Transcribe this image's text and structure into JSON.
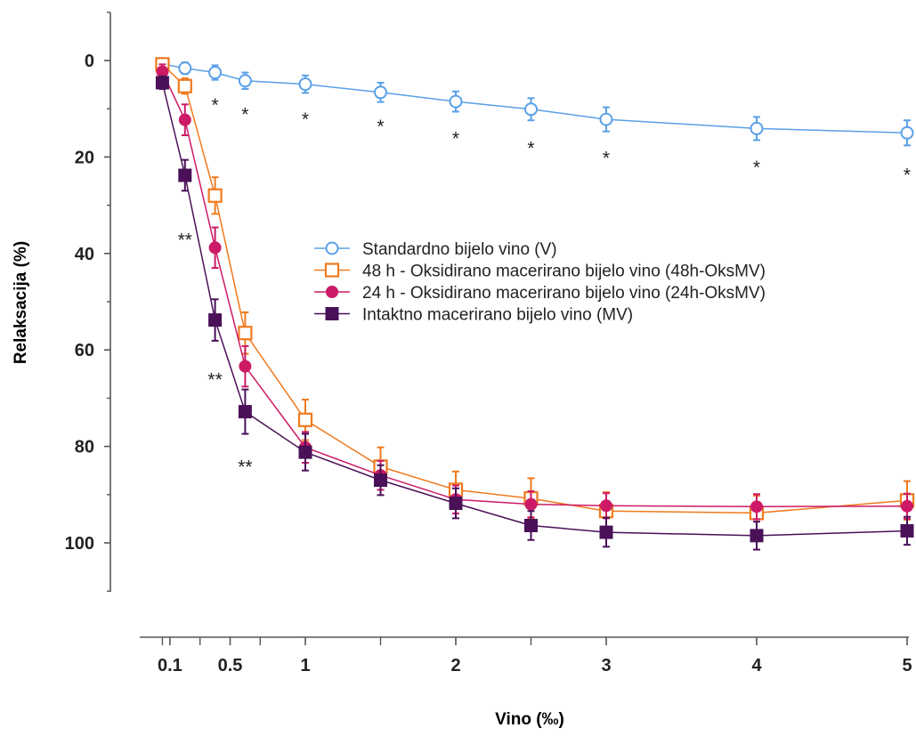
{
  "chart_data": {
    "type": "line",
    "title": "",
    "xlabel": "Vino (‰)",
    "ylabel": "Relaksacija (%)",
    "y_inverted": true,
    "ylim": [
      -10,
      110
    ],
    "yticks": [
      0,
      20,
      40,
      60,
      80,
      100
    ],
    "ytick_labels": [
      "0",
      "20",
      "40",
      "60",
      "80",
      "100"
    ],
    "xlim": [
      0,
      5
    ],
    "xticks": [
      0.1,
      0.5,
      1,
      2,
      3,
      4,
      5
    ],
    "xtick_labels": [
      "0.1",
      "0.5",
      "1",
      "2",
      "3",
      "4",
      "5"
    ],
    "x_minor_ticks": [
      0.05,
      0.3,
      0.7,
      1.5,
      2.5
    ],
    "x": [
      0,
      0.05,
      0.2,
      0.4,
      0.6,
      1,
      1.5,
      2,
      2.5,
      3,
      4,
      5
    ],
    "legend_position": "center-right",
    "series": [
      {
        "name": "Standardno bijelo vino (V)",
        "color": "#5aa0e6",
        "marker": "circle-open",
        "x": [
          0.05,
          0.2,
          0.4,
          0.6,
          1,
          1.5,
          2,
          2.5,
          3,
          4,
          5
        ],
        "values": [
          0.7,
          1.6,
          2.5,
          4.2,
          4.9,
          6.6,
          8.5,
          10.1,
          12.2,
          14.1,
          15.0
        ],
        "errors": [
          0.8,
          1.2,
          1.5,
          1.7,
          1.8,
          2.0,
          2.1,
          2.3,
          2.5,
          2.4,
          2.6
        ]
      },
      {
        "name": "48 h - Oksidirano macerirano bijelo vino (48h-OksMV)",
        "color": "#f07a1e",
        "marker": "square-open",
        "x": [
          0.05,
          0.2,
          0.4,
          0.6,
          1,
          1.5,
          2,
          2.5,
          3,
          4,
          5
        ],
        "values": [
          0.8,
          5.3,
          28.0,
          56.5,
          74.5,
          84.2,
          89.0,
          90.8,
          93.4,
          93.8,
          91.2
        ],
        "errors": [
          1.2,
          1.6,
          3.8,
          4.3,
          4.2,
          4.0,
          3.8,
          4.2,
          3.9,
          3.6,
          4.0
        ]
      },
      {
        "name": "24 h - Oksidirano macerirano bijelo vino (24h-OksMV)",
        "color": "#cc1a66",
        "marker": "circle-filled",
        "x": [
          0.05,
          0.2,
          0.4,
          0.6,
          1,
          1.5,
          2,
          2.5,
          3,
          4,
          5
        ],
        "values": [
          2.3,
          12.3,
          38.8,
          63.4,
          80.2,
          86.0,
          91.0,
          92.0,
          92.3,
          92.5,
          92.4
        ],
        "errors": [
          1.5,
          3.2,
          4.2,
          4.2,
          3.2,
          3.0,
          2.9,
          2.7,
          2.6,
          2.6,
          2.6
        ]
      },
      {
        "name": "Intaktno macerirano bijelo vino (MV)",
        "color": "#4a1058",
        "marker": "square-filled",
        "x": [
          0.05,
          0.2,
          0.4,
          0.6,
          1,
          1.5,
          2,
          2.5,
          3,
          4,
          5
        ],
        "values": [
          4.6,
          23.8,
          53.8,
          72.8,
          81.2,
          87.0,
          91.8,
          96.4,
          97.8,
          98.5,
          97.5
        ],
        "errors": [
          1.3,
          3.2,
          4.3,
          4.6,
          3.8,
          3.1,
          3.1,
          3.0,
          3.0,
          2.9,
          2.9
        ]
      }
    ],
    "annotations": [
      {
        "text": "*",
        "x": 0.4,
        "y": 9
      },
      {
        "text": "*",
        "x": 0.6,
        "y": 11
      },
      {
        "text": "*",
        "x": 1,
        "y": 12
      },
      {
        "text": "*",
        "x": 1.5,
        "y": 13.5
      },
      {
        "text": "*",
        "x": 2,
        "y": 16
      },
      {
        "text": "*",
        "x": 2.5,
        "y": 18
      },
      {
        "text": "*",
        "x": 3,
        "y": 20
      },
      {
        "text": "*",
        "x": 4,
        "y": 22
      },
      {
        "text": "*",
        "x": 5,
        "y": 23.5
      },
      {
        "text": "**",
        "x": 0.2,
        "y": 37
      },
      {
        "text": "**",
        "x": 0.4,
        "y": 66
      },
      {
        "text": "**",
        "x": 0.6,
        "y": 84
      }
    ]
  }
}
